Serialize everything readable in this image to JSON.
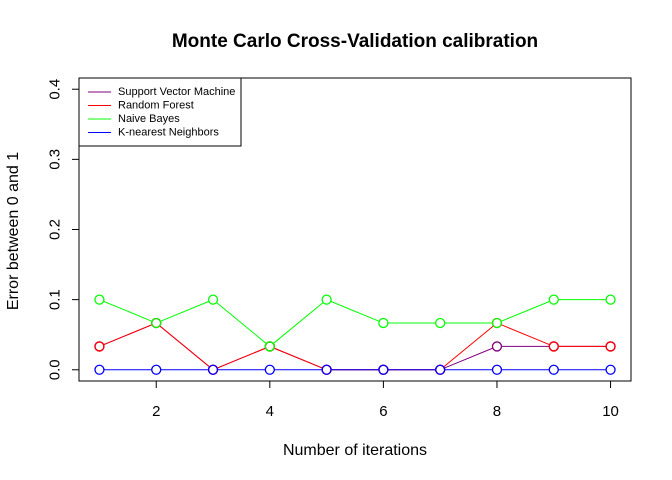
{
  "chart_data": {
    "type": "line",
    "title": "Monte Carlo Cross-Validation calibration",
    "xlabel": "Number of iterations",
    "ylabel": "Error between 0 and 1",
    "x": [
      1,
      2,
      3,
      4,
      5,
      6,
      7,
      8,
      9,
      10
    ],
    "xlim": [
      0.64,
      10.36
    ],
    "ylim": [
      -0.016,
      0.416
    ],
    "xticks": [
      2,
      4,
      6,
      8,
      10
    ],
    "yticks": [
      0.0,
      0.1,
      0.2,
      0.3,
      0.4
    ],
    "xtick_labels": [
      "2",
      "4",
      "6",
      "8",
      "10"
    ],
    "ytick_labels": [
      "0.0",
      "0.1",
      "0.2",
      "0.3",
      "0.4"
    ],
    "legend_position": "top-left",
    "series": [
      {
        "name": "Support Vector Machine",
        "color": "#800080",
        "values": [
          0.0333,
          0.0667,
          0.0,
          0.0333,
          0.0,
          0.0,
          0.0,
          0.0333,
          0.0333,
          0.0333
        ]
      },
      {
        "name": "Random Forest",
        "color": "#ff0000",
        "values": [
          0.0333,
          0.0667,
          0.0,
          0.0333,
          0.0,
          0.0,
          0.0,
          0.0667,
          0.0333,
          0.0333
        ]
      },
      {
        "name": "Naive Bayes",
        "color": "#00ff00",
        "values": [
          0.1,
          0.0667,
          0.1,
          0.0333,
          0.1,
          0.0667,
          0.0667,
          0.0667,
          0.1,
          0.1
        ]
      },
      {
        "name": "K-nearest Neighbors",
        "color": "#0000ff",
        "values": [
          0.0,
          0.0,
          0.0,
          0.0,
          0.0,
          0.0,
          0.0,
          0.0,
          0.0,
          0.0
        ]
      }
    ]
  }
}
